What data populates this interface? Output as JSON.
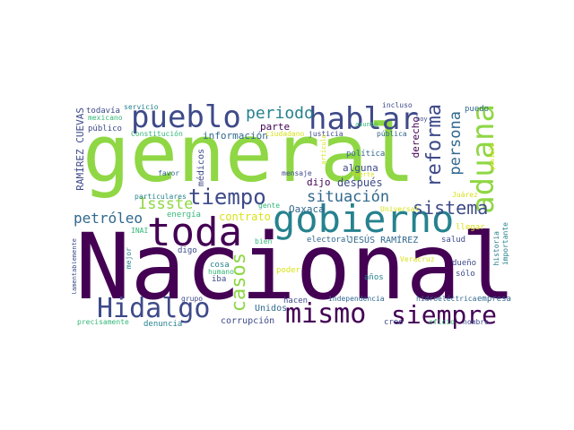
{
  "palette": {
    "purple": "#440154",
    "indigo": "#3e4a89",
    "blue": "#31688e",
    "teal": "#26828e",
    "green": "#35b779",
    "lime": "#8fd744",
    "yellow": "#d8e219"
  },
  "words": [
    {
      "text": "general",
      "color": "lime"
    },
    {
      "text": "Nacional",
      "color": "purple"
    },
    {
      "text": "gobierno",
      "color": "teal"
    },
    {
      "text": "toda",
      "color": "purple"
    },
    {
      "text": "aduana",
      "color": "lime"
    },
    {
      "text": "hablar",
      "color": "indigo"
    },
    {
      "text": "pueblo",
      "color": "indigo"
    },
    {
      "text": "mismo",
      "color": "purple"
    },
    {
      "text": "siempre",
      "color": "purple"
    },
    {
      "text": "Hidalgo",
      "color": "indigo"
    },
    {
      "text": "tiempo",
      "color": "indigo"
    },
    {
      "text": "casos",
      "color": "lime"
    },
    {
      "text": "reforma",
      "color": "indigo"
    },
    {
      "text": "sistema",
      "color": "indigo"
    },
    {
      "text": "persona",
      "color": "blue"
    },
    {
      "text": "periodo",
      "color": "teal"
    },
    {
      "text": "situación",
      "color": "blue"
    },
    {
      "text": "Issste",
      "color": "lime"
    },
    {
      "text": "petróleo",
      "color": "blue"
    },
    {
      "text": "contrato",
      "color": "yellow"
    },
    {
      "text": "RAMÍREZ CUEVAS",
      "color": "indigo"
    },
    {
      "text": "información",
      "color": "blue"
    },
    {
      "text": "parte",
      "color": "purple"
    },
    {
      "text": "dijo",
      "color": "purple"
    },
    {
      "text": "después",
      "color": "indigo"
    },
    {
      "text": "Oaxaca",
      "color": "blue"
    },
    {
      "text": "derecho",
      "color": "purple"
    },
    {
      "text": "alguna",
      "color": "indigo"
    },
    {
      "text": "política",
      "color": "blue"
    },
    {
      "text": "JESÚS RAMÍREZ",
      "color": "blue"
    },
    {
      "text": "electoral",
      "color": "blue"
    },
    {
      "text": "salud",
      "color": "indigo"
    },
    {
      "text": "médicos",
      "color": "indigo"
    },
    {
      "text": "energía",
      "color": "green"
    },
    {
      "text": "corrupción",
      "color": "indigo"
    },
    {
      "text": "Unidos",
      "color": "blue"
    },
    {
      "text": "hacen",
      "color": "indigo"
    },
    {
      "text": "creo",
      "color": "indigo"
    },
    {
      "text": "empresa",
      "color": "blue"
    },
    {
      "text": "puedo",
      "color": "blue"
    },
    {
      "text": "todavía",
      "color": "indigo"
    },
    {
      "text": "público",
      "color": "indigo"
    },
    {
      "text": "mexicano",
      "color": "green"
    },
    {
      "text": "servicio",
      "color": "teal"
    },
    {
      "text": "Constitución",
      "color": "green"
    },
    {
      "text": "ciudadano",
      "color": "yellow"
    },
    {
      "text": "justicia",
      "color": "indigo"
    },
    {
      "text": "incluso",
      "color": "indigo"
    },
    {
      "text": "asunto",
      "color": "green"
    },
    {
      "text": "pública",
      "color": "blue"
    },
    {
      "text": "hoy",
      "color": "indigo"
    },
    {
      "text": "mensaje",
      "color": "indigo"
    },
    {
      "text": "favor",
      "color": "blue"
    },
    {
      "text": "fuerte",
      "color": "yellow"
    },
    {
      "text": "particulares",
      "color": "teal"
    },
    {
      "text": "gente",
      "color": "green"
    },
    {
      "text": "INAI",
      "color": "green"
    },
    {
      "text": "digo",
      "color": "indigo"
    },
    {
      "text": "bien",
      "color": "green"
    },
    {
      "text": "mejor",
      "color": "teal"
    },
    {
      "text": "cosa",
      "color": "teal"
    },
    {
      "text": "humano",
      "color": "green"
    },
    {
      "text": "iba",
      "color": "indigo"
    },
    {
      "text": "poder",
      "color": "yellow"
    },
    {
      "text": "años",
      "color": "teal"
    },
    {
      "text": "sólo",
      "color": "indigo"
    },
    {
      "text": "dueño",
      "color": "indigo"
    },
    {
      "text": "llegar",
      "color": "yellow"
    },
    {
      "text": "historia",
      "color": "teal"
    },
    {
      "text": "importante",
      "color": "teal"
    },
    {
      "text": "Juárez",
      "color": "yellow"
    },
    {
      "text": "Veracruz",
      "color": "yellow"
    },
    {
      "text": "Universal",
      "color": "yellow"
    },
    {
      "text": "independencia",
      "color": "blue"
    },
    {
      "text": "hidroeléctrica",
      "color": "blue"
    },
    {
      "text": "grupo",
      "color": "indigo"
    },
    {
      "text": "lamentablemente",
      "color": "indigo"
    },
    {
      "text": "precisamente",
      "color": "green"
    },
    {
      "text": "denuncia",
      "color": "teal"
    },
    {
      "text": "oficio",
      "color": "green"
    },
    {
      "text": "nombre",
      "color": "indigo"
    },
    {
      "text": "artículo",
      "color": "yellow"
    },
    {
      "text": "posible",
      "color": "yellow"
    }
  ]
}
